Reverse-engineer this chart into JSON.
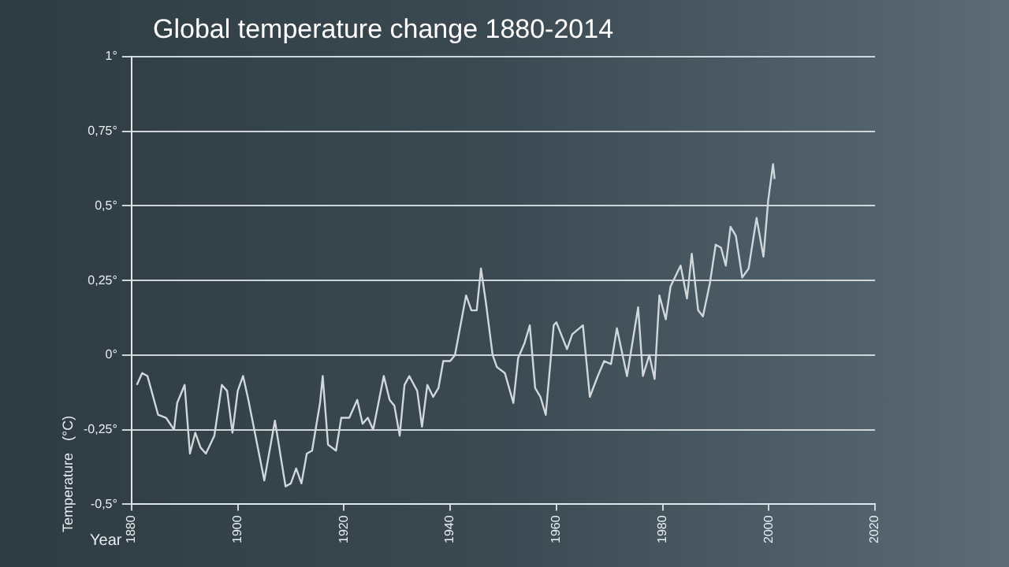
{
  "chart_data": {
    "type": "line",
    "title": "Global temperature change 1880-2014",
    "xlabel": "Year",
    "ylabel": "Temperature   (°C)",
    "xlim": [
      1880,
      2020
    ],
    "xticks": [
      1880,
      1900,
      1920,
      1940,
      1960,
      1980,
      2000,
      2020
    ],
    "ylim": [
      -0.5,
      1
    ],
    "yticks": [
      {
        "value": -0.5,
        "label": "-0,5°"
      },
      {
        "value": -0.25,
        "label": "-0,25°"
      },
      {
        "value": 0,
        "label": "0°"
      },
      {
        "value": 0.25,
        "label": "0,25°"
      },
      {
        "value": 0.5,
        "label": "0,5°"
      },
      {
        "value": 0.75,
        "label": "0,75°"
      },
      {
        "value": 1,
        "label": "1°"
      }
    ],
    "grid": "y",
    "legend": false,
    "marker": "none",
    "line_style": "solid",
    "series": [
      {
        "color": "#d0d8dc",
        "x": [
          1881,
          1882,
          1883,
          1885,
          1886.5,
          1888,
          1888.6,
          1890,
          1891,
          1892,
          1893,
          1894,
          1895.6,
          1897,
          1898,
          1899,
          1900,
          1901,
          1902,
          1905,
          1907,
          1909,
          1910,
          1911,
          1912,
          1913,
          1914,
          1915.5,
          1916,
          1917,
          1918.5,
          1919.5,
          1921,
          1922.5,
          1923.5,
          1924.5,
          1925.5,
          1927.5,
          1928.6,
          1929.5,
          1930.5,
          1931.4,
          1932.3,
          1933.8,
          1934.7,
          1935.7,
          1936.8,
          1937.8,
          1938.7,
          1940,
          1940.9,
          1943,
          1944,
          1945,
          1945.8,
          1946.7,
          1948,
          1948.8,
          1950.3,
          1951.9,
          1952.8,
          1954,
          1955,
          1956,
          1957,
          1958,
          1959.5,
          1960,
          1962,
          1963,
          1965,
          1966.3,
          1967.8,
          1969,
          1970.3,
          1971.4,
          1973.3,
          1975.4,
          1976.3,
          1977.5,
          1978.5,
          1979.4,
          1980.6,
          1981.5,
          1983.4,
          1984.6,
          1985.5,
          1986.7,
          1987.6,
          1988.9,
          1990,
          1991,
          1991.9,
          1992.8,
          1993.8,
          1995,
          1996.2,
          1997.7,
          1999,
          1999.9,
          2000.8,
          2001.1
        ],
        "values": [
          -0.1,
          -0.06,
          -0.07,
          -0.2,
          -0.21,
          -0.25,
          -0.16,
          -0.1,
          -0.33,
          -0.26,
          -0.31,
          -0.33,
          -0.27,
          -0.1,
          -0.12,
          -0.26,
          -0.12,
          -0.07,
          -0.15,
          -0.42,
          -0.22,
          -0.44,
          -0.43,
          -0.38,
          -0.43,
          -0.33,
          -0.32,
          -0.16,
          -0.07,
          -0.3,
          -0.32,
          -0.21,
          -0.21,
          -0.15,
          -0.23,
          -0.21,
          -0.25,
          -0.07,
          -0.15,
          -0.17,
          -0.27,
          -0.1,
          -0.07,
          -0.12,
          -0.24,
          -0.1,
          -0.14,
          -0.11,
          -0.02,
          -0.02,
          0,
          0.2,
          0.15,
          0.15,
          0.29,
          0.18,
          0,
          -0.04,
          -0.06,
          -0.16,
          -0.01,
          0.04,
          0.1,
          -0.11,
          -0.14,
          -0.2,
          0.1,
          0.11,
          0.02,
          0.07,
          0.1,
          -0.14,
          -0.07,
          -0.02,
          -0.03,
          0.09,
          -0.07,
          0.16,
          -0.07,
          0,
          -0.08,
          0.2,
          0.12,
          0.23,
          0.3,
          0.19,
          0.34,
          0.15,
          0.13,
          0.24,
          0.37,
          0.36,
          0.3,
          0.43,
          0.4,
          0.26,
          0.29,
          0.46,
          0.33,
          0.52,
          0.64,
          0.59
        ]
      }
    ]
  }
}
